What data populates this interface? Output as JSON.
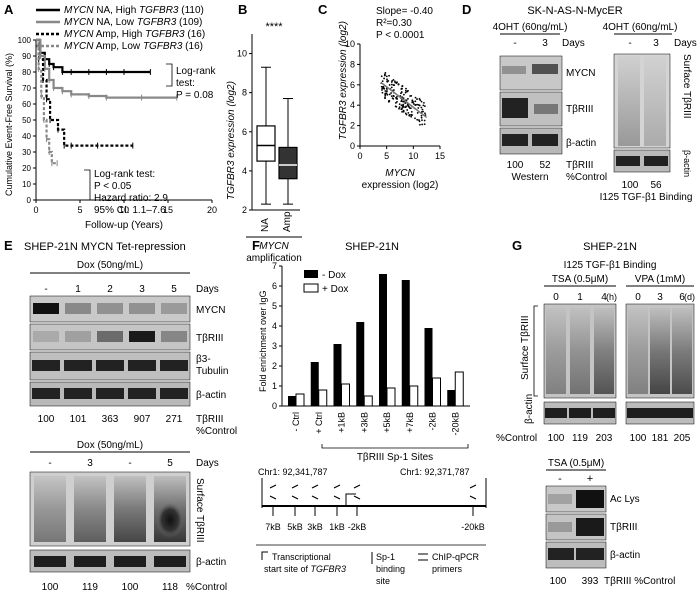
{
  "panels": {
    "A": "A",
    "B": "B",
    "C": "C",
    "D": "D",
    "E": "E",
    "F": "F",
    "G": "G"
  },
  "a": {
    "legend": [
      {
        "gene": "MYCN",
        "status": "NA, High",
        "target": "TGFBR3",
        "n": "(110)"
      },
      {
        "gene": "MYCN",
        "status": "NA, Low",
        "target": "TGFBR3",
        "n": "(109)"
      },
      {
        "gene": "MYCN",
        "status": "Amp, High",
        "target": "TGFBR3",
        "n": "(16)"
      },
      {
        "gene": "MYCN",
        "status": "Amp, Low",
        "target": "TGFBR3",
        "n": "(16)"
      }
    ],
    "ylabel": "Cumulative Event-Free Survival (%)",
    "xlabel": "Follow-up (Years)",
    "yticks": [
      "0",
      "10",
      "20",
      "30",
      "40",
      "50",
      "60",
      "70",
      "80",
      "90",
      "100"
    ],
    "xticks": [
      "0",
      "5",
      "10",
      "15",
      "20"
    ],
    "note1": [
      "Log-rank",
      "test:",
      "P = 0.08"
    ],
    "note2": [
      "Log-rank test:",
      "P < 0.05",
      "Hazard ratio: 2.9",
      "95% CI: 1.1–7.6"
    ]
  },
  "b": {
    "ylabel": "TGFBR3 expression (log2)",
    "sig": "****",
    "yticks": [
      "2",
      "4",
      "6",
      "8",
      "10"
    ],
    "cats": [
      "NA",
      "Amp"
    ],
    "xlabel1": "MYCN",
    "xlabel2": "amplification"
  },
  "c": {
    "stats": [
      "Slope= -0.40",
      "R²=0.30",
      "P < 0.0001"
    ],
    "ylabel": "TGFBR3 expression (log2)",
    "yticks": [
      "0",
      "2",
      "4",
      "6",
      "8",
      "10"
    ],
    "xticks": [
      "0",
      "5",
      "10",
      "15"
    ],
    "xlabel1": "MYCN",
    "xlabel2": "expression (log2)"
  },
  "d": {
    "title": "SK-N-AS-N-MycER",
    "treat": "4OHT (60ng/mL)",
    "lanes": [
      "-",
      "3"
    ],
    "days": "Days",
    "bands": [
      "MYCN",
      "TβRIII",
      "β-actin"
    ],
    "values": [
      "100",
      "52"
    ],
    "vlabel": "TβRIII",
    "vlabel2": "%Control",
    "western": "Western",
    "surface": "Surface TβRIII",
    "actin": "β-actin",
    "values2": [
      "100",
      "56"
    ],
    "binding": "I125 TGF-β1 Binding"
  },
  "e": {
    "title": "SHEP-21N MYCN Tet-repression",
    "dox": "Dox (50ng/mL)",
    "lanes": [
      "-",
      "1",
      "2",
      "3",
      "5"
    ],
    "days": "Days",
    "bands": [
      "MYCN",
      "TβRIII",
      "β3-\nTubulin",
      "β-actin"
    ],
    "values": [
      "100",
      "101",
      "363",
      "907",
      "271"
    ],
    "vlabel": "TβRIII",
    "vlabel2": "%Control",
    "lanes2": [
      "-",
      "3",
      "-",
      "5"
    ],
    "surface": "Surface TβRIII",
    "actin": "β-actin",
    "values2": [
      "100",
      "119",
      "100",
      "118"
    ],
    "vlabel3": "%Control"
  },
  "f": {
    "title": "SHEP-21N",
    "ylabel": "Fold enrichment over IgG",
    "yticks": [
      "0",
      "1",
      "2",
      "3",
      "4",
      "5",
      "6",
      "7"
    ],
    "xlabel": "TβRIII Sp-1 Sites",
    "legend": [
      "- Dox",
      "+ Dox"
    ],
    "coord1": "Chr1: 92,341,787",
    "coord2": "Chr1: 92,371,787",
    "sites": [
      "7kB",
      "5kB",
      "3kB",
      "1kB",
      "-2kB",
      "-20kB"
    ],
    "key": [
      "Transcriptional",
      "start site of TGFBR3",
      "Sp-1",
      "binding",
      "site",
      "ChIP-qPCR",
      "primers"
    ]
  },
  "g": {
    "title": "SHEP-21N",
    "binding": "I125 TGF-β1 Binding",
    "tsa": "TSA (0.5μM)",
    "vpa": "VPA (1mM)",
    "lanes_tsa": [
      "0",
      "1",
      "4"
    ],
    "unit_tsa": "(h)",
    "lanes_vpa": [
      "0",
      "3",
      "6"
    ],
    "unit_vpa": "(d)",
    "surface": "Surface TβRIII",
    "actin": "β-actin",
    "pct": "%Control",
    "values_tsa": [
      "100",
      "119",
      "203"
    ],
    "values_vpa": [
      "100",
      "181",
      "205"
    ],
    "tsa2": "TSA (0.5μM)",
    "lanes2": [
      "-",
      "+"
    ],
    "bands2": [
      "Ac Lys",
      "TβRIII",
      "β-actin"
    ],
    "values2": [
      "100",
      "393"
    ],
    "vlabel2": "TβRIII %Control"
  },
  "chart_data": [
    {
      "type": "line",
      "panel": "A",
      "xlabel": "Follow-up (Years)",
      "ylabel": "Cumulative Event-Free Survival (%)",
      "xlim": [
        0,
        20
      ],
      "ylim": [
        0,
        100
      ],
      "series": [
        {
          "name": "MYCN NA, High TGFBR3 (110)",
          "x": [
            0,
            0.5,
            1,
            1.5,
            2,
            3,
            4,
            6,
            8,
            10,
            13
          ],
          "y": [
            100,
            92,
            88,
            85,
            83,
            80,
            80,
            80,
            80,
            80,
            80
          ]
        },
        {
          "name": "MYCN NA, Low TGFBR3 (109)",
          "x": [
            0,
            0.5,
            1,
            1.5,
            2,
            3,
            4,
            6,
            8,
            12,
            16
          ],
          "y": [
            100,
            90,
            82,
            75,
            70,
            68,
            66,
            65,
            64,
            64,
            64
          ]
        },
        {
          "name": "MYCN Amp, High TGFBR3 (16)",
          "x": [
            0,
            0.3,
            0.8,
            1.2,
            1.6,
            2.5,
            3.2,
            4,
            7,
            11
          ],
          "y": [
            100,
            88,
            75,
            63,
            50,
            44,
            34,
            34,
            34,
            34
          ]
        },
        {
          "name": "MYCN Amp, Low TGFBR3 (16)",
          "x": [
            0,
            0.3,
            0.6,
            0.9,
            1.2,
            1.5,
            1.8,
            2.4
          ],
          "y": [
            100,
            82,
            65,
            50,
            38,
            30,
            23,
            23
          ]
        }
      ]
    },
    {
      "type": "bar",
      "panel": "B",
      "categories": [
        "NA",
        "Amp"
      ],
      "ylabel": "TGFBR3 expression (log2)",
      "ylim": [
        2,
        11
      ],
      "boxes": [
        {
          "min": 2.3,
          "q1": 4.5,
          "median": 5.3,
          "q3": 6.3,
          "max": 9.3
        },
        {
          "min": 2.3,
          "q1": 3.6,
          "median": 4.3,
          "q3": 5.2,
          "max": 7.7
        }
      ]
    },
    {
      "type": "scatter",
      "panel": "C",
      "xlabel": "MYCN expression (log2)",
      "ylabel": "TGFBR3 expression (log2)",
      "xlim": [
        0,
        15
      ],
      "ylim": [
        0,
        10
      ],
      "slope": -0.4,
      "r2": 0.3
    },
    {
      "type": "bar",
      "panel": "F",
      "categories": [
        "- Ctrl",
        "+ Ctrl",
        "+1kB",
        "+3kB",
        "+5kB",
        "+7kB",
        "-2kB",
        "-20kB"
      ],
      "ylabel": "Fold enrichment over IgG",
      "ylim": [
        0,
        7
      ],
      "series": [
        {
          "name": "- Dox",
          "values": [
            0.5,
            2.2,
            3.1,
            4.2,
            6.6,
            6.3,
            3.9,
            0.8
          ]
        },
        {
          "name": "+ Dox",
          "values": [
            0.6,
            0.8,
            1.1,
            0.5,
            0.9,
            1.0,
            1.4,
            1.7
          ]
        }
      ]
    }
  ]
}
